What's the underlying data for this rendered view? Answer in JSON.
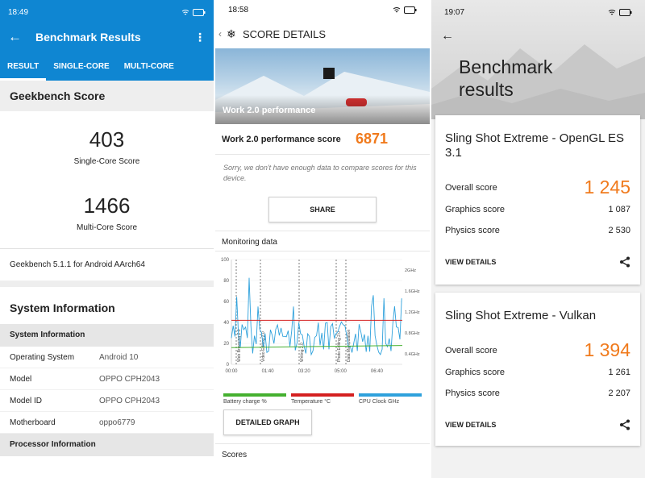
{
  "panel1": {
    "status_time": "18:49",
    "status_right": "◉ ▮ 72",
    "title": "Benchmark Results",
    "tabs": [
      "RESULT",
      "SINGLE-CORE",
      "MULTI-CORE"
    ],
    "section_score": "Geekbench Score",
    "single_score": "403",
    "single_label": "Single-Core Score",
    "multi_score": "1466",
    "multi_label": "Multi-Core Score",
    "version": "Geekbench 5.1.1 for Android AArch64",
    "sysinfo_title": "System Information",
    "sysinfo_head": "System Information",
    "rows": [
      {
        "k": "Operating System",
        "v": "Android 10"
      },
      {
        "k": "Model",
        "v": "OPPO CPH2043"
      },
      {
        "k": "Model ID",
        "v": "OPPO CPH2043"
      },
      {
        "k": "Motherboard",
        "v": "oppo6779"
      }
    ],
    "proc_head": "Processor Information"
  },
  "panel2": {
    "status_time": "18:58",
    "title": "SCORE DETAILS",
    "hero_caption": "Work 2.0 performance",
    "score_label": "Work 2.0 performance score",
    "score_value": "6871",
    "note": "Sorry, we don't have enough data to compare scores for this device.",
    "share": "SHARE",
    "monitoring": "Monitoring data",
    "x_ticks": [
      "00:00",
      "01:40",
      "03:20",
      "05:00",
      "06:40"
    ],
    "y_left": [
      "100",
      "80",
      "60",
      "40",
      "20",
      "0"
    ],
    "y_right": [
      "2GHz",
      "1.6GHz",
      "1.2GHz",
      "0.8GHz",
      "0.4GHz"
    ],
    "markers": [
      "Web Browsing 2.0",
      "Video Editing 2.0",
      "Writing 2.0",
      "Photo Editing 2.0",
      "Data Manipulation"
    ],
    "legend": [
      {
        "label": "Battery charge %",
        "color": "#45b02f"
      },
      {
        "label": "Temperature °C",
        "color": "#d42020"
      },
      {
        "label": "CPU Clock GHz",
        "color": "#2ea1dc"
      }
    ],
    "detailed": "DETAILED GRAPH",
    "scores": "Scores"
  },
  "panel3": {
    "status_time": "19:07",
    "title_line1": "Benchmark",
    "title_line2": "results",
    "cards": [
      {
        "title": "Sling Shot Extreme - OpenGL ES 3.1",
        "overall_label": "Overall score",
        "overall": "1 245",
        "rows": [
          {
            "k": "Graphics score",
            "v": "1 087"
          },
          {
            "k": "Physics score",
            "v": "2 530"
          }
        ],
        "link": "VIEW DETAILS"
      },
      {
        "title": "Sling Shot Extreme - Vulkan",
        "overall_label": "Overall score",
        "overall": "1 394",
        "rows": [
          {
            "k": "Graphics score",
            "v": "1 261"
          },
          {
            "k": "Physics score",
            "v": "2 207"
          }
        ],
        "link": "VIEW DETAILS"
      }
    ]
  },
  "colors": {
    "geekbench_blue": "#0f86d2",
    "accent_orange": "#f07a1c"
  }
}
